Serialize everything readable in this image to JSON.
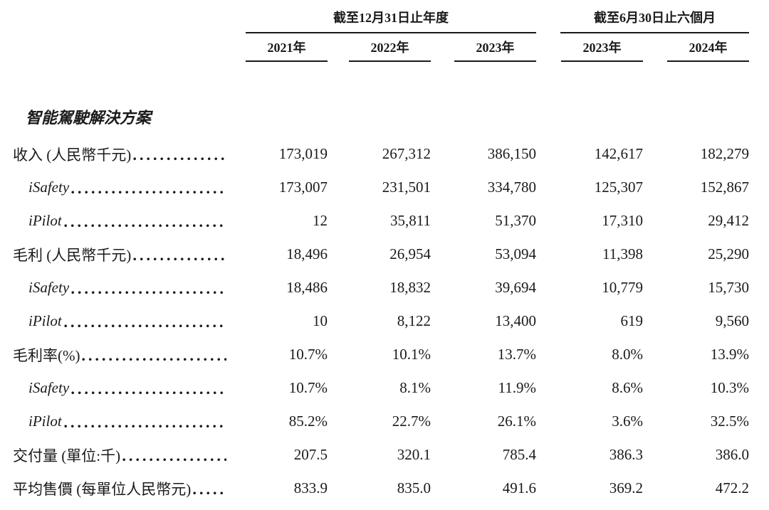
{
  "table": {
    "col_groups": [
      {
        "label": "截至12月31日止年度",
        "span": 3
      },
      {
        "label": "截至6月30日止六個月",
        "span": 2
      }
    ],
    "columns": [
      "2021年",
      "2022年",
      "2023年",
      "2023年",
      "2024年"
    ],
    "section_title": "智能駕駛解決方案",
    "rows": [
      {
        "label": "收入 (人民幣千元)",
        "indent": 0,
        "italic": false,
        "values": [
          "173,019",
          "267,312",
          "386,150",
          "142,617",
          "182,279"
        ]
      },
      {
        "label": "iSafety",
        "indent": 1,
        "italic": true,
        "values": [
          "173,007",
          "231,501",
          "334,780",
          "125,307",
          "152,867"
        ]
      },
      {
        "label": "iPilot",
        "indent": 1,
        "italic": true,
        "values": [
          "12",
          "35,811",
          "51,370",
          "17,310",
          "29,412"
        ]
      },
      {
        "label": "毛利 (人民幣千元)",
        "indent": 0,
        "italic": false,
        "values": [
          "18,496",
          "26,954",
          "53,094",
          "11,398",
          "25,290"
        ]
      },
      {
        "label": "iSafety",
        "indent": 1,
        "italic": true,
        "values": [
          "18,486",
          "18,832",
          "39,694",
          "10,779",
          "15,730"
        ]
      },
      {
        "label": "iPilot",
        "indent": 1,
        "italic": true,
        "values": [
          "10",
          "8,122",
          "13,400",
          "619",
          "9,560"
        ]
      },
      {
        "label": "毛利率(%)",
        "indent": 0,
        "italic": false,
        "values": [
          "10.7%",
          "10.1%",
          "13.7%",
          "8.0%",
          "13.9%"
        ]
      },
      {
        "label": "iSafety",
        "indent": 1,
        "italic": true,
        "values": [
          "10.7%",
          "8.1%",
          "11.9%",
          "8.6%",
          "10.3%"
        ]
      },
      {
        "label": "iPilot",
        "indent": 1,
        "italic": true,
        "values": [
          "85.2%",
          "22.7%",
          "26.1%",
          "3.6%",
          "32.5%"
        ]
      },
      {
        "label": "交付量 (單位:千)",
        "indent": 0,
        "italic": false,
        "values": [
          "207.5",
          "320.1",
          "785.4",
          "386.3",
          "386.0"
        ]
      },
      {
        "label": "平均售價 (每單位人民幣元)",
        "indent": 0,
        "italic": false,
        "values": [
          "833.9",
          "835.0",
          "491.6",
          "369.2",
          "472.2"
        ]
      }
    ],
    "colors": {
      "text": "#1a1a1a",
      "rule": "#1a1a1a",
      "background": "#ffffff"
    }
  }
}
